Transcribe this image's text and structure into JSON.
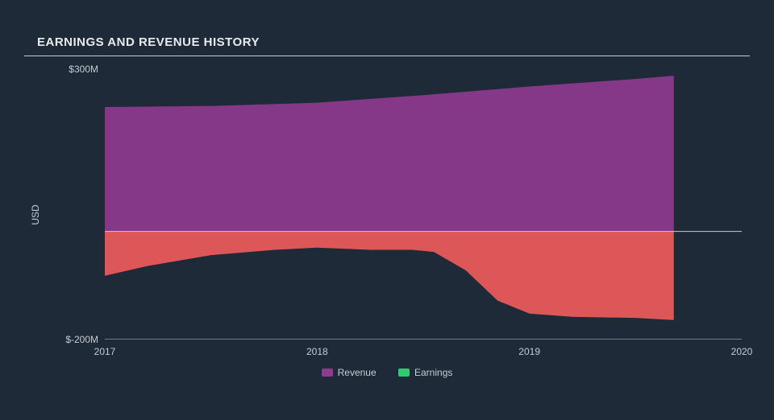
{
  "chart": {
    "type": "area",
    "title": "EARNINGS AND REVENUE HISTORY",
    "title_fontsize": 15,
    "title_color": "#e8ebee",
    "background_color": "#1e2a38",
    "rule_color": "#c6ccd2",
    "axis_text_color": "#c6ccd2",
    "y_axis": {
      "title": "USD",
      "min": -200,
      "max": 300,
      "ticks": [
        {
          "value": 300,
          "label": "$300M"
        },
        {
          "value": -200,
          "label": "$-200M"
        }
      ],
      "zero_line_color": "#c6ccd2",
      "bottom_line_color": "#c6ccd2"
    },
    "x_axis": {
      "min": 2017,
      "max": 2020,
      "ticks": [
        {
          "value": 2017,
          "label": "2017"
        },
        {
          "value": 2018,
          "label": "2018"
        },
        {
          "value": 2019,
          "label": "2019"
        },
        {
          "value": 2020,
          "label": "2020"
        }
      ]
    },
    "series": {
      "revenue": {
        "label": "Revenue",
        "fill_color": "#8e3a8e",
        "fill_opacity": 0.92,
        "points": [
          {
            "x": 2017.0,
            "y": 230
          },
          {
            "x": 2017.5,
            "y": 232
          },
          {
            "x": 2018.0,
            "y": 238
          },
          {
            "x": 2018.5,
            "y": 252
          },
          {
            "x": 2019.0,
            "y": 268
          },
          {
            "x": 2019.5,
            "y": 282
          },
          {
            "x": 2019.68,
            "y": 288
          }
        ],
        "data_end_x": 2019.68
      },
      "earnings": {
        "label": "Earnings",
        "swatch_color": "#2ecc71",
        "fill_color": "#ef5b5b",
        "fill_opacity": 0.92,
        "points": [
          {
            "x": 2017.0,
            "y": -82
          },
          {
            "x": 2017.2,
            "y": -64
          },
          {
            "x": 2017.5,
            "y": -44
          },
          {
            "x": 2017.8,
            "y": -34
          },
          {
            "x": 2018.0,
            "y": -30
          },
          {
            "x": 2018.25,
            "y": -34
          },
          {
            "x": 2018.45,
            "y": -34
          },
          {
            "x": 2018.55,
            "y": -38
          },
          {
            "x": 2018.7,
            "y": -72
          },
          {
            "x": 2018.85,
            "y": -128
          },
          {
            "x": 2019.0,
            "y": -152
          },
          {
            "x": 2019.2,
            "y": -158
          },
          {
            "x": 2019.5,
            "y": -160
          },
          {
            "x": 2019.68,
            "y": -164
          }
        ],
        "data_end_x": 2019.68
      }
    },
    "legend": [
      {
        "key": "revenue",
        "color": "#8e3a8e"
      },
      {
        "key": "earnings",
        "color": "#2ecc71"
      }
    ]
  }
}
